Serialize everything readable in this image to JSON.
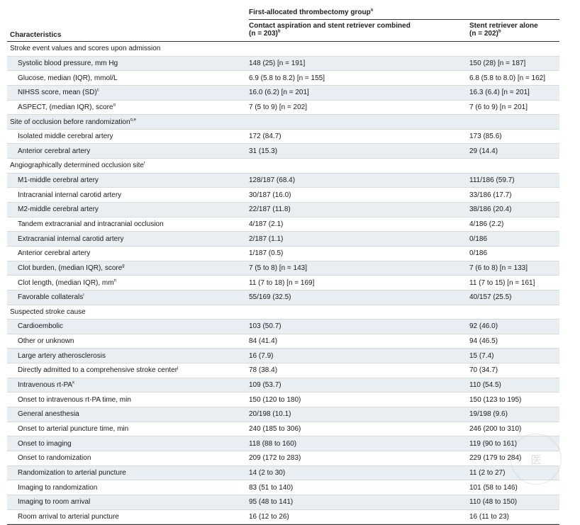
{
  "header": {
    "group_title": "First-allocated thrombectomy group",
    "group_title_sup": "a",
    "characteristics": "Characteristics",
    "col_a_line1": "Contact aspiration and stent retriever combined",
    "col_a_line2": "(n = 203)",
    "col_a_sup": "b",
    "col_b_line1": "Stent retriever alone",
    "col_b_line2": "(n = 202)",
    "col_b_sup": "b"
  },
  "rows": [
    {
      "label": "Stroke event values and scores upon admission",
      "sup": "",
      "a": "",
      "b": "",
      "section": true
    },
    {
      "label": "Systolic blood pressure, mm Hg",
      "sup": "",
      "a": "148 (25) [n = 191]",
      "b": "150 (28) [n = 187]",
      "section": false
    },
    {
      "label": "Glucose, median (IQR), mmol/L",
      "sup": "",
      "a": "6.9 (5.8 to 8.2) [n = 155]",
      "b": "6.8 (5.8 to 8.0) [n = 162]",
      "section": false
    },
    {
      "label": "NIHSS score, mean (SD)",
      "sup": "c",
      "a": "16.0 (6.2) [n = 201]",
      "b": "16.3 (6.4) [n = 201]",
      "section": false
    },
    {
      "label": "ASPECT, (median IQR), score",
      "sup": "d",
      "a": "7 (5 to 9) [n = 202]",
      "b": "7 (6 to 9) [n = 201]",
      "section": false
    },
    {
      "label": "Site of occlusion before randomization",
      "sup": "d,e",
      "a": "",
      "b": "",
      "section": true
    },
    {
      "label": "Isolated middle cerebral artery",
      "sup": "",
      "a": "172 (84.7)",
      "b": "173 (85.6)",
      "section": false
    },
    {
      "label": "Anterior cerebral artery",
      "sup": "",
      "a": "31 (15.3)",
      "b": "29 (14.4)",
      "section": false
    },
    {
      "label": "Angiographically determined occlusion site",
      "sup": "f",
      "a": "",
      "b": "",
      "section": true
    },
    {
      "label": "M1-middle cerebral artery",
      "sup": "",
      "a": "128/187 (68.4)",
      "b": "111/186 (59.7)",
      "section": false
    },
    {
      "label": "Intracranial internal carotid artery",
      "sup": "",
      "a": "30/187 (16.0)",
      "b": "33/186 (17.7)",
      "section": false
    },
    {
      "label": "M2-middle cerebral artery",
      "sup": "",
      "a": "22/187 (11.8)",
      "b": "38/186 (20.4)",
      "section": false
    },
    {
      "label": "Tandem extracranial and intracranial occlusion",
      "sup": "",
      "a": "4/187 (2.1)",
      "b": "4/186 (2.2)",
      "section": false
    },
    {
      "label": "Extracranial internal carotid artery",
      "sup": "",
      "a": "2/187 (1.1)",
      "b": "0/186",
      "section": false
    },
    {
      "label": "Anterior cerebral artery",
      "sup": "",
      "a": "1/187 (0.5)",
      "b": "0/186",
      "section": false
    },
    {
      "label": "Clot burden, (median IQR), score",
      "sup": "g",
      "a": "7 (5 to 8) [n = 143]",
      "b": "7 (6 to 8) [n = 133]",
      "section": false
    },
    {
      "label": "Clot length, (median IQR), mm",
      "sup": "h",
      "a": "11 (7 to 18) [n = 169]",
      "b": "11 (7 to 15) [n = 161]",
      "section": false
    },
    {
      "label": "Favorable collaterals",
      "sup": "i",
      "a": "55/169 (32.5)",
      "b": "40/157 (25.5)",
      "section": false
    },
    {
      "label": "Suspected stroke cause",
      "sup": "",
      "a": "",
      "b": "",
      "section": true
    },
    {
      "label": "Cardioembolic",
      "sup": "",
      "a": "103 (50.7)",
      "b": "92 (46.0)",
      "section": false
    },
    {
      "label": "Other or unknown",
      "sup": "",
      "a": "84 (41.4)",
      "b": "94 (46.5)",
      "section": false
    },
    {
      "label": "Large artery atherosclerosis",
      "sup": "",
      "a": "16 (7.9)",
      "b": "15 (7.4)",
      "section": false
    },
    {
      "label": "Directly admitted to a comprehensive stroke center",
      "sup": "j",
      "a": "78 (38.4)",
      "b": "70 (34.7)",
      "section": false
    },
    {
      "label": "Intravenous rt-PA",
      "sup": "k",
      "a": "109 (53.7)",
      "b": "110 (54.5)",
      "section": false
    },
    {
      "label": "Onset to intravenous rt-PA time, min",
      "sup": "",
      "a": "150 (120 to 180)",
      "b": "150 (123 to 195)",
      "section": false
    },
    {
      "label": "General anesthesia",
      "sup": "",
      "a": "20/198 (10.1)",
      "b": "19/198 (9.6)",
      "section": false
    },
    {
      "label": "Onset to arterial puncture time, min",
      "sup": "",
      "a": "240 (185 to 306)",
      "b": "246 (200 to 310)",
      "section": false
    },
    {
      "label": "Onset to imaging",
      "sup": "",
      "a": "118 (88 to 160)",
      "b": "119 (90 to 161)",
      "section": false
    },
    {
      "label": "Onset to randomization",
      "sup": "",
      "a": "209 (172 to 283)",
      "b": "229 (179 to 284)",
      "section": false
    },
    {
      "label": "Randomization to arterial puncture",
      "sup": "",
      "a": "14 (2 to 30)",
      "b": "11 (2 to 27)",
      "section": false
    },
    {
      "label": "Imaging to randomization",
      "sup": "",
      "a": "83 (51 to 140)",
      "b": "101 (58 to 146)",
      "section": false
    },
    {
      "label": "Imaging to room arrival",
      "sup": "",
      "a": "95 (48 to 141)",
      "b": "110 (48 to 150)",
      "section": false
    },
    {
      "label": "Room arrival to arterial puncture",
      "sup": "",
      "a": "16 (12 to 26)",
      "b": "16 (11 to 23)",
      "section": false
    }
  ],
  "colors": {
    "stripe": "#e9eef3",
    "rule": "#333333",
    "text": "#1a1a1a"
  }
}
